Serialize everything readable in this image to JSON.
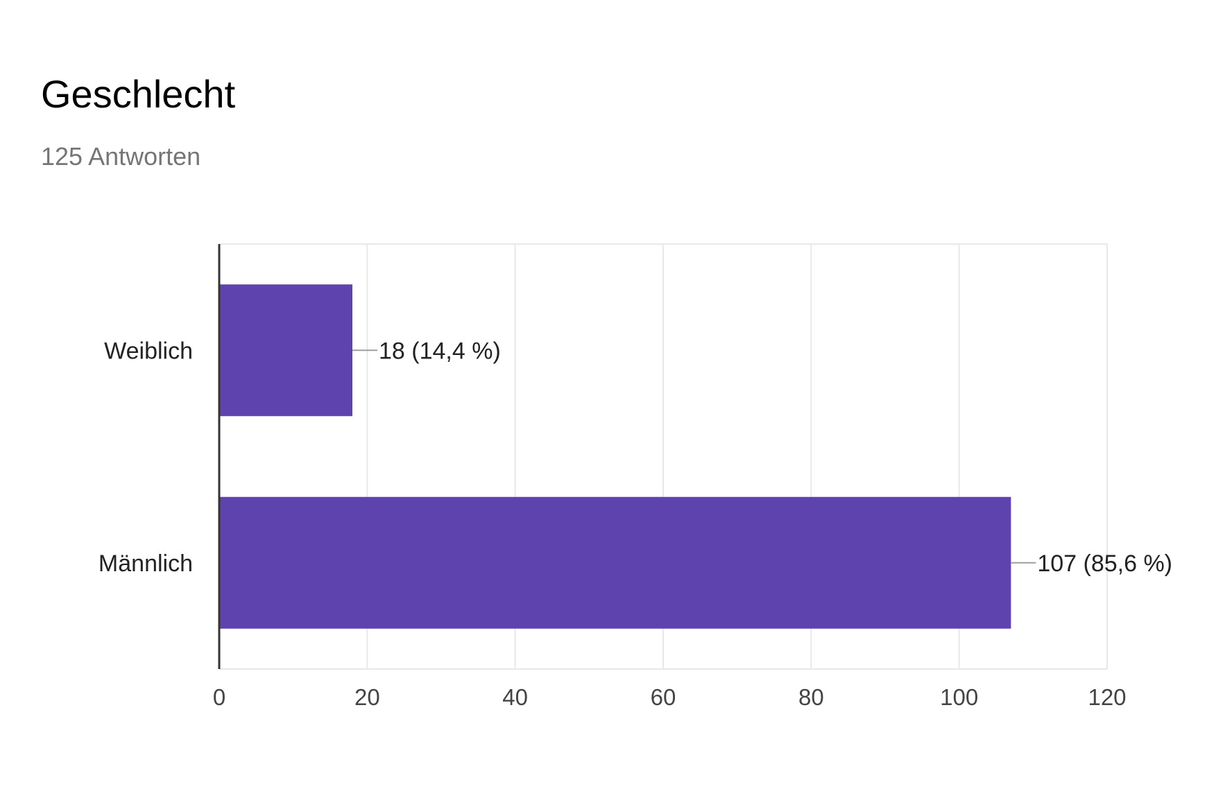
{
  "header": {
    "title": "Geschlecht",
    "subtitle": "125 Antworten"
  },
  "colors": {
    "bar": "#5e43ae",
    "grid": "#e8e8e8",
    "axis": "#333333",
    "leader": "#9e9e9e"
  },
  "chart_data": {
    "type": "bar",
    "orientation": "horizontal",
    "title": "Geschlecht",
    "subtitle": "125 Antworten",
    "categories": [
      "Weiblich",
      "Männlich"
    ],
    "values": [
      18,
      107
    ],
    "data_labels": [
      "18 (14,4 %)",
      "107 (85,6 %)"
    ],
    "xlim": [
      0,
      120
    ],
    "xticks": [
      0,
      20,
      40,
      60,
      80,
      100,
      120
    ],
    "xlabel": "",
    "ylabel": "",
    "grid": true,
    "legend": "none"
  }
}
